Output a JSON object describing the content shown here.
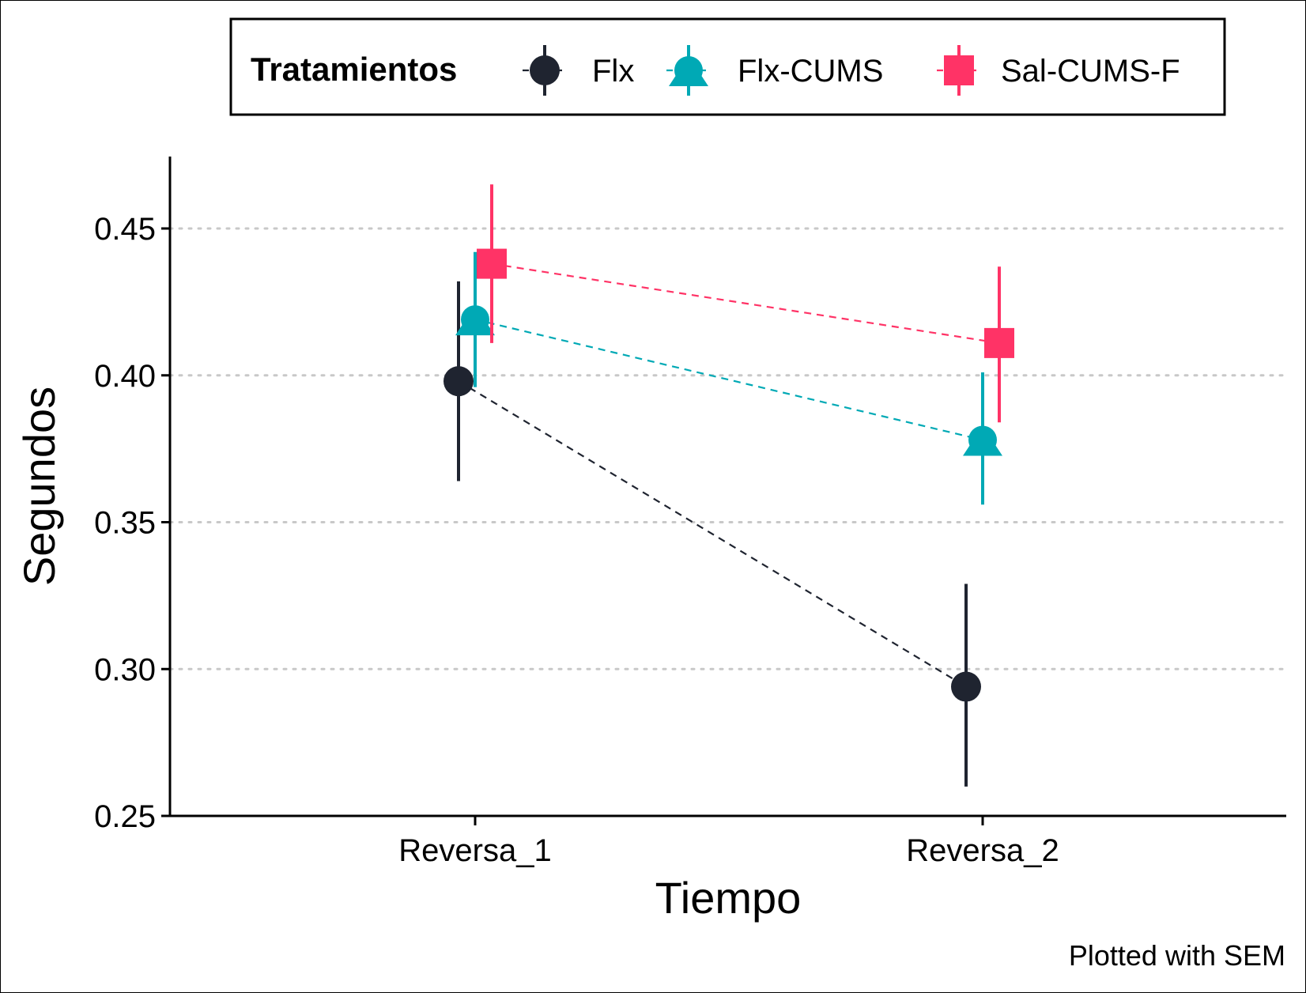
{
  "chart_data": {
    "type": "line",
    "xlabel": "Tiempo",
    "ylabel": "Segundos",
    "caption": "Plotted with SEM",
    "categories": [
      "Reversa_1",
      "Reversa_2"
    ],
    "ylim": [
      0.25,
      0.475
    ],
    "yticks": [
      "0.25",
      "0.30",
      "0.35",
      "0.40",
      "0.45"
    ],
    "grid": "horizontal dotted",
    "legend": {
      "title": "Tratamientos",
      "position": "top",
      "items": [
        "Flx",
        "Flx-CUMS",
        "Sal-CUMS-F"
      ]
    },
    "series": [
      {
        "name": "Flx",
        "color": "#1F2430",
        "marker": "circle",
        "values": [
          0.398,
          0.294
        ],
        "sem_lower": [
          0.364,
          0.26
        ],
        "sem_upper": [
          0.432,
          0.329
        ]
      },
      {
        "name": "Flx-CUMS",
        "color": "#00A9B5",
        "marker": "triangle",
        "values": [
          0.419,
          0.378
        ],
        "sem_lower": [
          0.396,
          0.356
        ],
        "sem_upper": [
          0.442,
          0.401
        ]
      },
      {
        "name": "Sal-CUMS-F",
        "color": "#FF3366",
        "marker": "square",
        "values": [
          0.438,
          0.411
        ],
        "sem_lower": [
          0.411,
          0.384
        ],
        "sem_upper": [
          0.465,
          0.437
        ]
      }
    ]
  }
}
